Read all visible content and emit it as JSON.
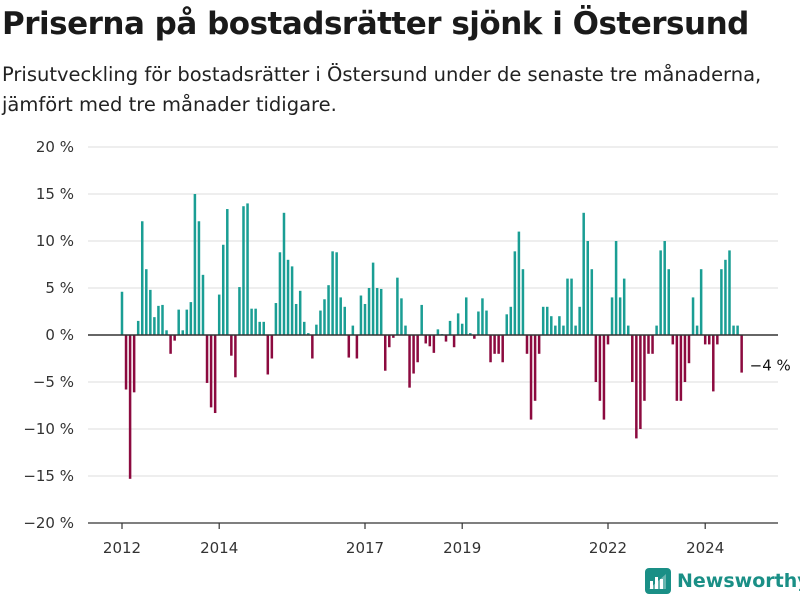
{
  "header": {
    "title": "Priserna på bostadsrätter sjönk i Östersund",
    "subtitle": "Prisutveckling för bostadsrätter i Östersund under de senaste tre månaderna, jämfört med tre månader tidigare."
  },
  "brand": {
    "name": "Newsworthy"
  },
  "colors": {
    "positive": "#1a9e94",
    "negative": "#8c0a3f",
    "grid": "#dddddd",
    "axis": "#333333"
  },
  "chart_data": {
    "type": "bar",
    "title": "Priserna på bostadsrätter sjönk i Östersund",
    "ylim": [
      -20,
      20
    ],
    "ytick_values": [
      20,
      15,
      10,
      5,
      0,
      -5,
      -10,
      -15,
      -20
    ],
    "ytick_labels": [
      "20 %",
      "15 %",
      "10 %",
      "5 %",
      "0 %",
      "−5 %",
      "−10 %",
      "−15 %",
      "−20 %"
    ],
    "xticks": [
      {
        "label": "2012",
        "month_index": 0
      },
      {
        "label": "2014",
        "month_index": 24
      },
      {
        "label": "2017",
        "month_index": 60
      },
      {
        "label": "2019",
        "month_index": 84
      },
      {
        "label": "2022",
        "month_index": 120
      },
      {
        "label": "2024",
        "month_index": 144
      }
    ],
    "x_start": "2012-01",
    "x_end": "2025-06",
    "grid": true,
    "annotation": {
      "label": "−4 %",
      "month_index": 153
    },
    "values": [
      4.6,
      -5.8,
      -15.3,
      -6.1,
      1.5,
      12.1,
      7.0,
      4.8,
      1.9,
      3.1,
      3.2,
      0.5,
      -2.0,
      -0.6,
      2.7,
      0.5,
      2.7,
      3.5,
      15.0,
      12.1,
      6.4,
      -5.1,
      -7.7,
      -8.3,
      4.3,
      9.6,
      13.4,
      -2.2,
      -4.5,
      5.1,
      13.7,
      14.0,
      2.8,
      2.8,
      1.4,
      1.4,
      -4.2,
      -2.5,
      3.4,
      8.8,
      13.0,
      8.0,
      7.3,
      3.3,
      4.7,
      1.4,
      0.2,
      -2.5,
      1.1,
      2.6,
      3.8,
      5.3,
      8.9,
      8.8,
      4.0,
      3.0,
      -2.4,
      1.0,
      -2.5,
      4.2,
      3.3,
      5.0,
      7.7,
      5.0,
      4.9,
      -3.8,
      -1.3,
      -0.3,
      6.1,
      3.9,
      1.0,
      -5.6,
      -4.1,
      -2.9,
      3.2,
      -0.9,
      -1.2,
      -1.9,
      0.6,
      0.1,
      -0.7,
      1.5,
      -1.3,
      2.3,
      1.2,
      4.0,
      0.2,
      -0.4,
      2.5,
      3.9,
      2.6,
      -2.9,
      -2.0,
      -2.0,
      -2.9,
      2.2,
      3.0,
      8.9,
      11.0,
      7.0,
      -2.0,
      -9.0,
      -7.0,
      -2.0,
      3.0,
      3.0,
      2.0,
      1.0,
      2.0,
      1.0,
      6.0,
      6.0,
      1.0,
      3.0,
      13.0,
      10.0,
      7.0,
      -5.0,
      -7.0,
      -9.0,
      -1.0,
      4.0,
      10.0,
      4.0,
      6.0,
      1.0,
      -5.0,
      -11.0,
      -10.0,
      -7.0,
      -2.0,
      -2.0,
      1.0,
      9.0,
      10.0,
      7.0,
      -1.0,
      -7.0,
      -7.0,
      -5.0,
      -3.0,
      4.0,
      1.0,
      7.0,
      -1.0,
      -1.0,
      -6.0,
      -1.0,
      7.0,
      8.0,
      9.0,
      1.0,
      1.0,
      -4.0
    ]
  }
}
